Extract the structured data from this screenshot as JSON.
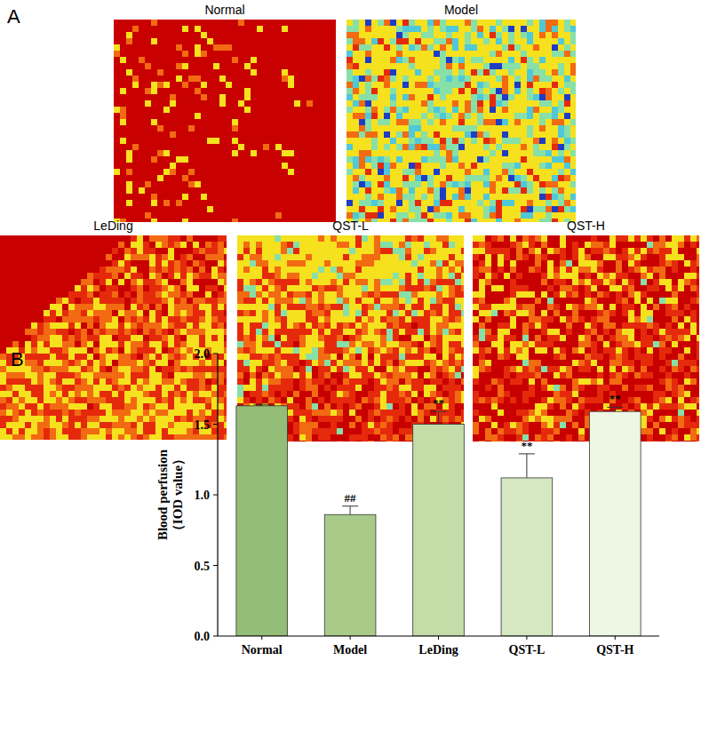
{
  "panels": {
    "a_label": "A",
    "b_label": "B",
    "image_titles": [
      "Normal",
      "Model",
      "LeDing",
      "QST-L",
      "QST-H"
    ]
  },
  "chart_data": {
    "type": "bar",
    "categories": [
      "Normal",
      "Model",
      "LeDing",
      "QST-L",
      "QST-H"
    ],
    "values": [
      1.63,
      0.86,
      1.5,
      1.12,
      1.59
    ],
    "errors": [
      0.01,
      0.06,
      0.09,
      0.17,
      0.03
    ],
    "annotations": [
      null,
      "##",
      "**",
      "**",
      "**"
    ],
    "colors": [
      "#94bd77",
      "#a8cb89",
      "#c3dca8",
      "#d5e8c1",
      "#eef6e4"
    ],
    "y_label": [
      "Blood perfusion",
      "（IOD value）"
    ],
    "ylim": [
      0,
      2
    ],
    "yticks": [
      {
        "value": 0,
        "label": "0.0"
      },
      {
        "value": 0.5,
        "label": "0.5"
      },
      {
        "value": 1,
        "label": "1.0"
      },
      {
        "value": 1.5,
        "label": "1.5"
      },
      {
        "value": 2,
        "label": "2.0"
      }
    ],
    "grid": false
  }
}
